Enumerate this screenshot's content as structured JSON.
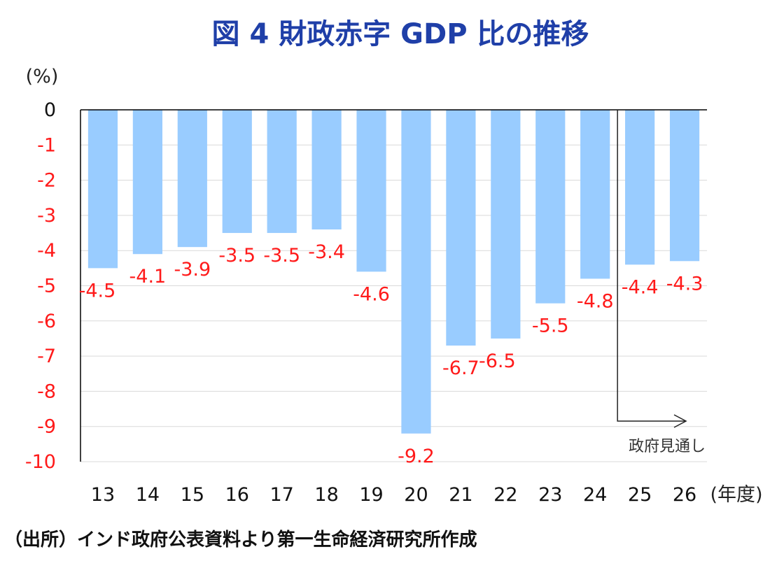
{
  "chart_data": {
    "type": "bar",
    "title": "図 4  財政赤字 GDP 比の推移",
    "ylabel": "(%)",
    "xlabel": "(年度)",
    "categories": [
      "13",
      "14",
      "15",
      "16",
      "17",
      "18",
      "19",
      "20",
      "21",
      "22",
      "23",
      "24",
      "25",
      "26"
    ],
    "values": [
      -4.5,
      -4.1,
      -3.9,
      -3.5,
      -3.5,
      -3.4,
      -4.6,
      -9.2,
      -6.7,
      -6.5,
      -5.5,
      -4.8,
      -4.4,
      -4.3
    ],
    "data_labels": [
      "-4.5",
      "-4.1",
      "-3.9",
      "-3.5",
      "-3.5",
      "-3.4",
      "-4.6",
      "-9.2",
      "-6.7",
      "-6.5",
      "-5.5",
      "-4.8",
      "-4.4",
      "-4.3"
    ],
    "ylim": [
      -10,
      0
    ],
    "yticks": [
      "0",
      "-1",
      "-2",
      "-3",
      "-4",
      "-5",
      "-6",
      "-7",
      "-8",
      "-9",
      "-10"
    ],
    "grid": true,
    "annotation": {
      "text": "政府見通し",
      "from_category": "25"
    },
    "colors": {
      "bar": "#99ccff",
      "label": "#ff1a1a",
      "title": "#1f3fa8"
    }
  },
  "source": "（出所）インド政府公表資料より第一生命経済研究所作成"
}
